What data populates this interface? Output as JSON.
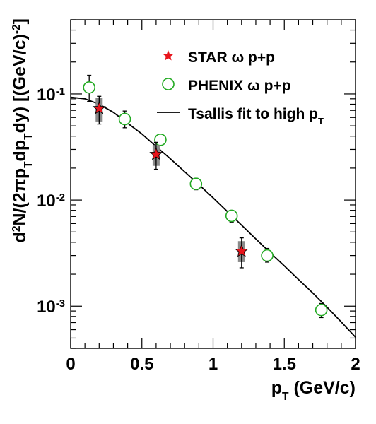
{
  "chart_data": {
    "type": "scatter",
    "xlabel": {
      "main": "p",
      "sub": "T",
      "unit": " (GeV/c)"
    },
    "ylabel": {
      "runs": [
        {
          "t": "d"
        },
        {
          "t": "2",
          "s": "sup"
        },
        {
          "t": "N/(2πp"
        },
        {
          "t": "T",
          "s": "sub"
        },
        {
          "t": "dp"
        },
        {
          "t": "T",
          "s": "sub"
        },
        {
          "t": "dy) [(GeV/c)"
        },
        {
          "t": "-2",
          "s": "sup"
        },
        {
          "t": "]"
        }
      ]
    },
    "x_axis": {
      "range": [
        0,
        2
      ],
      "scale": "linear",
      "ticks": [
        {
          "v": 0,
          "label": "0"
        },
        {
          "v": 0.5,
          "label": "0.5"
        },
        {
          "v": 1,
          "label": "1"
        },
        {
          "v": 1.5,
          "label": "1.5"
        },
        {
          "v": 2,
          "label": "2"
        }
      ]
    },
    "y_axis": {
      "range": [
        0.0004,
        0.5
      ],
      "scale": "log",
      "ticks": [
        {
          "v": 0.001,
          "base": "10",
          "exp": "-3"
        },
        {
          "v": 0.01,
          "base": "10",
          "exp": "-2"
        },
        {
          "v": 0.1,
          "base": "10",
          "exp": "-1"
        }
      ]
    },
    "series": [
      {
        "name": "STAR ω p+p",
        "marker": "star",
        "color": "#e8141c",
        "points": [
          {
            "x": 0.2,
            "y": 0.073,
            "ylo": 0.052,
            "yhi": 0.095,
            "syslo": 0.055,
            "syshi": 0.092
          },
          {
            "x": 0.6,
            "y": 0.027,
            "ylo": 0.0195,
            "yhi": 0.035,
            "syslo": 0.021,
            "syshi": 0.033
          },
          {
            "x": 1.2,
            "y": 0.0033,
            "ylo": 0.0023,
            "yhi": 0.0044,
            "syslo": 0.0026,
            "syshi": 0.0041
          }
        ]
      },
      {
        "name": "PHENIX ω p+p",
        "marker": "open-circle",
        "color": "#22aa22",
        "points": [
          {
            "x": 0.13,
            "y": 0.115,
            "ylo": 0.085,
            "yhi": 0.15
          },
          {
            "x": 0.38,
            "y": 0.058,
            "ylo": 0.048,
            "yhi": 0.069
          },
          {
            "x": 0.63,
            "y": 0.037,
            "ylo": 0.034,
            "yhi": 0.04
          },
          {
            "x": 0.88,
            "y": 0.0142,
            "ylo": 0.0125,
            "yhi": 0.016
          },
          {
            "x": 1.13,
            "y": 0.0071,
            "ylo": 0.0062,
            "yhi": 0.008
          },
          {
            "x": 1.38,
            "y": 0.003,
            "ylo": 0.0026,
            "yhi": 0.0035
          },
          {
            "x": 1.76,
            "y": 0.00092,
            "ylo": 0.00078,
            "yhi": 0.00106
          }
        ]
      }
    ],
    "fit": {
      "name": "Tsallis fit to high p",
      "name_sub": "T",
      "color": "#000000",
      "points": [
        {
          "x": 0,
          "y": 0.093
        },
        {
          "x": 0.1,
          "y": 0.09
        },
        {
          "x": 0.2,
          "y": 0.08
        },
        {
          "x": 0.3,
          "y": 0.067
        },
        {
          "x": 0.4,
          "y": 0.053
        },
        {
          "x": 0.5,
          "y": 0.042
        },
        {
          "x": 0.6,
          "y": 0.032
        },
        {
          "x": 0.7,
          "y": 0.0245
        },
        {
          "x": 0.8,
          "y": 0.0185
        },
        {
          "x": 0.9,
          "y": 0.014
        },
        {
          "x": 1.0,
          "y": 0.0105
        },
        {
          "x": 1.1,
          "y": 0.0078
        },
        {
          "x": 1.2,
          "y": 0.0058
        },
        {
          "x": 1.3,
          "y": 0.0043
        },
        {
          "x": 1.4,
          "y": 0.0032
        },
        {
          "x": 1.5,
          "y": 0.0024
        },
        {
          "x": 1.6,
          "y": 0.00178
        },
        {
          "x": 1.7,
          "y": 0.00133
        },
        {
          "x": 1.8,
          "y": 0.00098
        },
        {
          "x": 1.9,
          "y": 0.00071
        },
        {
          "x": 2.0,
          "y": 0.00051
        }
      ]
    },
    "legend": {
      "placement": "top-right"
    },
    "grid": false
  }
}
